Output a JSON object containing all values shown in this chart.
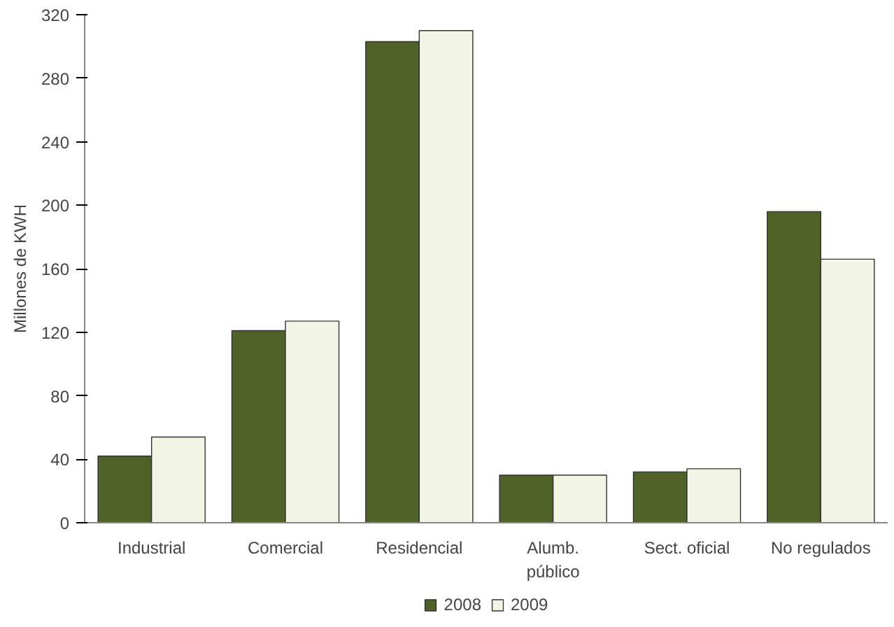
{
  "chart_data": {
    "type": "bar",
    "ylabel": "Millones de KWH",
    "categories": [
      "Industrial",
      "Comercial",
      "Residencial",
      "Alumb.\npúblico",
      "Sect. oficial",
      "No regulados"
    ],
    "series": [
      {
        "name": "2008",
        "color": "#4f6228",
        "values": [
          42,
          121,
          303,
          30,
          32,
          196
        ]
      },
      {
        "name": "2009",
        "color": "#f2f4e4",
        "values": [
          54,
          127,
          310,
          30,
          34,
          166
        ]
      }
    ],
    "ylim": [
      0,
      320
    ],
    "yticks": [
      0,
      40,
      80,
      120,
      160,
      200,
      240,
      280,
      320
    ],
    "grid": false,
    "legend": "bottom"
  }
}
